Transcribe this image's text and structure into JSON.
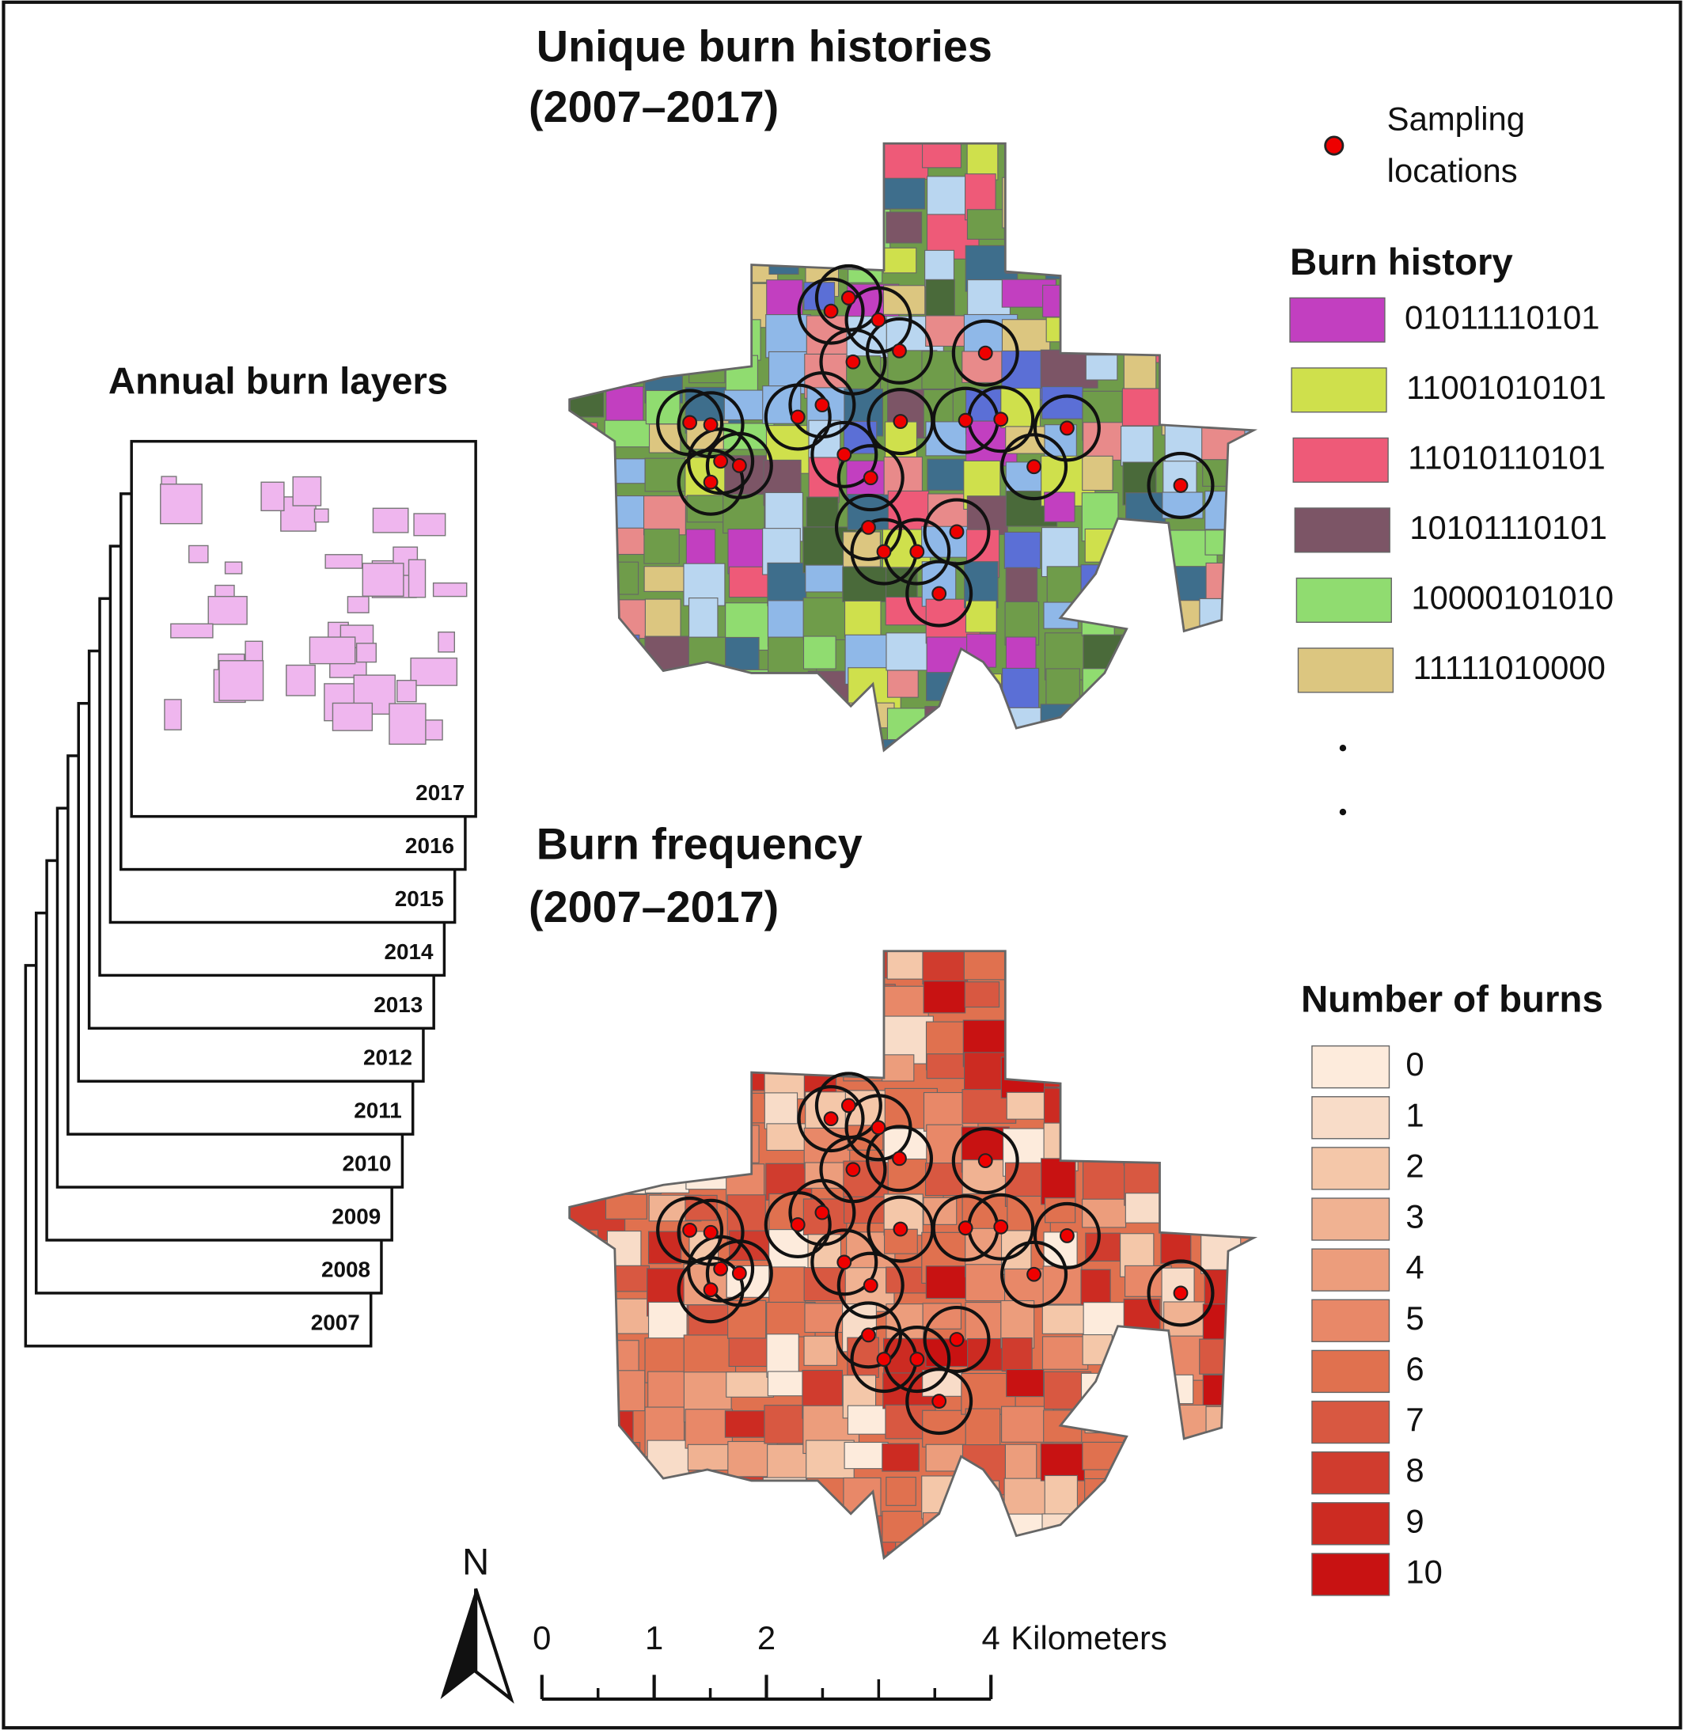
{
  "titles": {
    "unique": "Unique burn histories",
    "unique_years": "(2007–2017)",
    "frequency": "Burn frequency",
    "frequency_years": "(2007–2017)",
    "annual": "Annual burn layers"
  },
  "annual_layers": [
    "2017",
    "2016",
    "2015",
    "2014",
    "2013",
    "2012",
    "2011",
    "2010",
    "2009",
    "2008",
    "2007"
  ],
  "sampling_legend": [
    "Sampling",
    "locations"
  ],
  "burn_history_legend": {
    "title": "Burn history",
    "items": [
      {
        "label": "01011110101",
        "color": "#c23fc0"
      },
      {
        "label": "11001010101",
        "color": "#cfe04c"
      },
      {
        "label": "11010110101",
        "color": "#ee5a78"
      },
      {
        "label": "10101110101",
        "color": "#7c5566"
      },
      {
        "label": "10000101010",
        "color": "#90dc70"
      },
      {
        "label": "11111010000",
        "color": "#dcc680"
      }
    ]
  },
  "burn_count_legend": {
    "title": "Number of burns",
    "items": [
      {
        "label": "0",
        "color": "#fdebdc"
      },
      {
        "label": "1",
        "color": "#f8dcc8"
      },
      {
        "label": "2",
        "color": "#f4c7a9"
      },
      {
        "label": "3",
        "color": "#f0b292"
      },
      {
        "label": "4",
        "color": "#ec9d7c"
      },
      {
        "label": "5",
        "color": "#e88868"
      },
      {
        "label": "6",
        "color": "#e0714f"
      },
      {
        "label": "7",
        "color": "#d85841"
      },
      {
        "label": "8",
        "color": "#d03c2e"
      },
      {
        "label": "9",
        "color": "#cc2b22"
      },
      {
        "label": "10",
        "color": "#c81212"
      }
    ]
  },
  "scale_bar": {
    "ticks": [
      0,
      1,
      2,
      4
    ],
    "unit": "Kilometers"
  },
  "north": "N"
}
